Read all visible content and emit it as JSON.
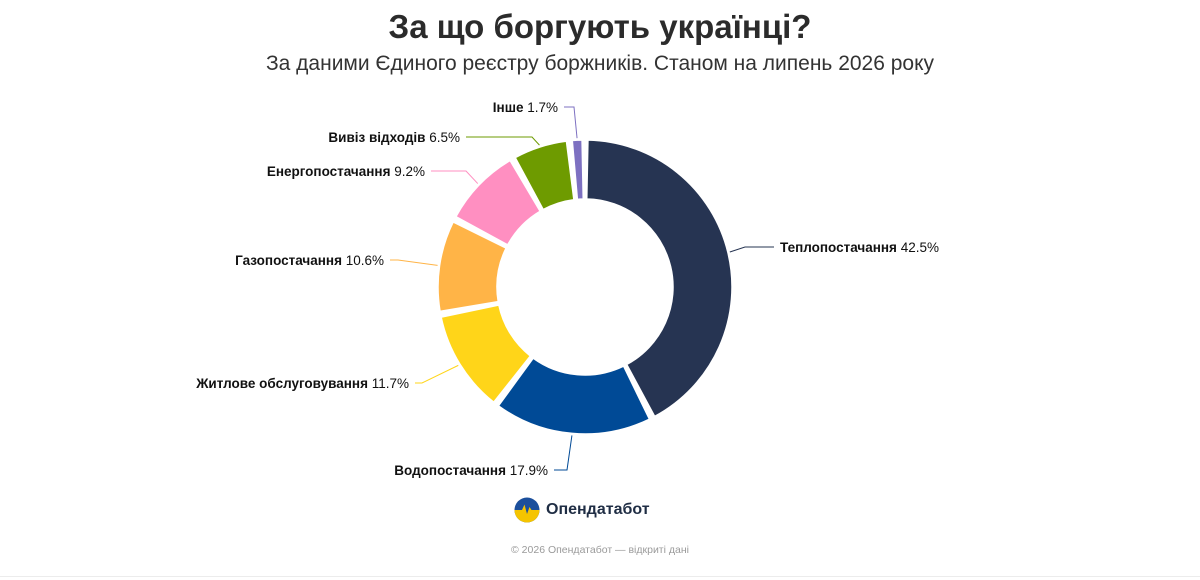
{
  "page": {
    "title": "За що боргують українці?",
    "subtitle": "За даними Єдиного реєстру боржників. Станом на липень 2026 року",
    "brand_name": "Опендатабот",
    "footer": "© 2026 Опендатабот — відкриті дані"
  },
  "chart_data": {
    "type": "pie",
    "variant": "donut",
    "unit": "%",
    "legend": "none",
    "slices": [
      {
        "label": "Теплопостачання",
        "value": 42.5,
        "color": "#263452",
        "label_side": "right"
      },
      {
        "label": "Водопостачання",
        "value": 17.9,
        "color": "#004a96",
        "label_side": "left"
      },
      {
        "label": "Житлове обслуговування",
        "value": 11.7,
        "color": "#ffd519",
        "label_side": "left"
      },
      {
        "label": "Газопостачання",
        "value": 10.6,
        "color": "#ffb447",
        "label_side": "left"
      },
      {
        "label": "Енергопостачання",
        "value": 9.2,
        "color": "#ff8fc1",
        "label_side": "left"
      },
      {
        "label": "Вивіз відходів",
        "value": 6.5,
        "color": "#6e9b00",
        "label_side": "left"
      },
      {
        "label": "Інше",
        "value": 1.7,
        "color": "#7d70c1",
        "label_side": "left"
      }
    ]
  },
  "colors": {
    "slice_border": "#ffffff",
    "brand_blue": "#1b4f9c",
    "brand_yellow": "#f5c400"
  }
}
